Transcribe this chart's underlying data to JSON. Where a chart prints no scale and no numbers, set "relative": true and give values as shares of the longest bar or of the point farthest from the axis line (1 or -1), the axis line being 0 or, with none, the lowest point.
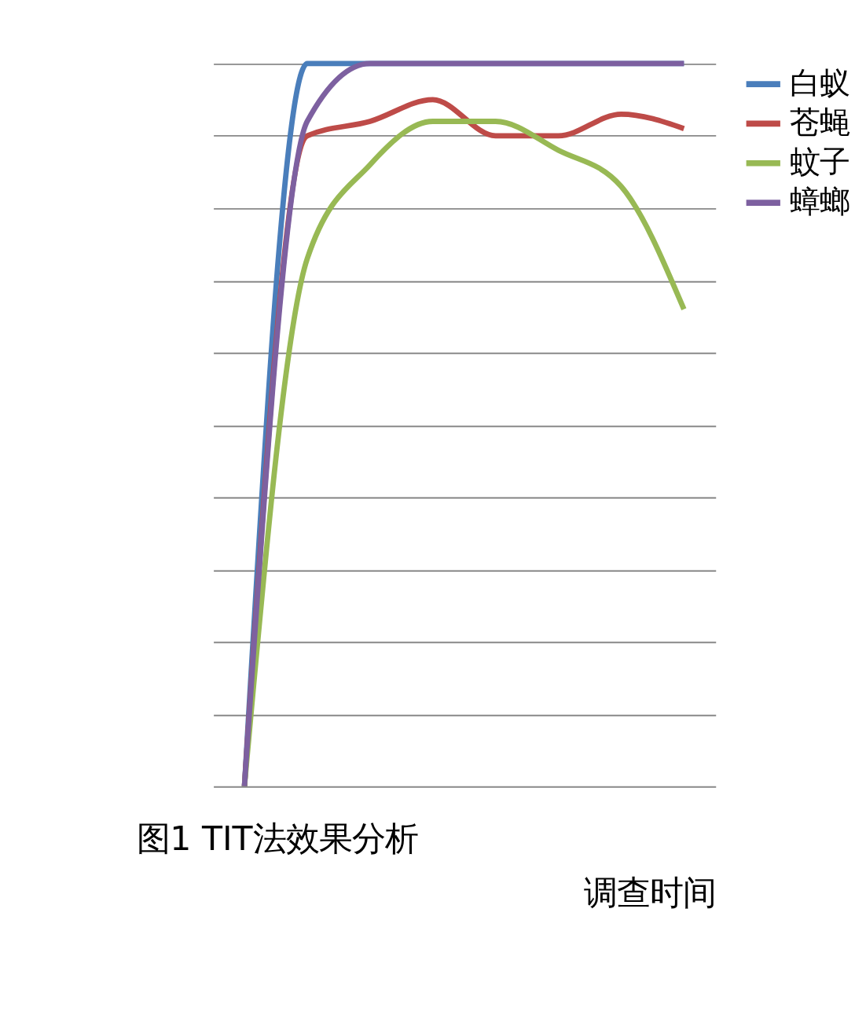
{
  "chart_data": {
    "type": "line",
    "relative": true,
    "xlabel": "调查时间",
    "categories": [
      null,
      null,
      null,
      null,
      null,
      null,
      null,
      null
    ],
    "series": [
      {
        "name": "白蚁",
        "color": "#4a7ebb",
        "values": [
          0,
          1,
          1,
          1,
          1,
          1,
          1,
          1
        ]
      },
      {
        "name": "苍蝇",
        "color": "#be4b48",
        "values": [
          0,
          0.9,
          0.92,
          0.95,
          0.9,
          0.9,
          0.93,
          0.91
        ]
      },
      {
        "name": "蚊子",
        "color": "#98b954",
        "values": [
          0,
          0.73,
          0.86,
          0.92,
          0.92,
          0.88,
          0.83,
          0.66
        ]
      },
      {
        "name": "蟑螂",
        "color": "#7d60a0",
        "values": [
          0,
          0.92,
          1,
          1,
          1,
          1,
          1,
          1
        ]
      }
    ],
    "annotations": [
      "图1 TIT法效果分析"
    ],
    "grid": "y",
    "legend": "right",
    "tick_labels": false,
    "line_style": "solid",
    "marker": "none"
  }
}
